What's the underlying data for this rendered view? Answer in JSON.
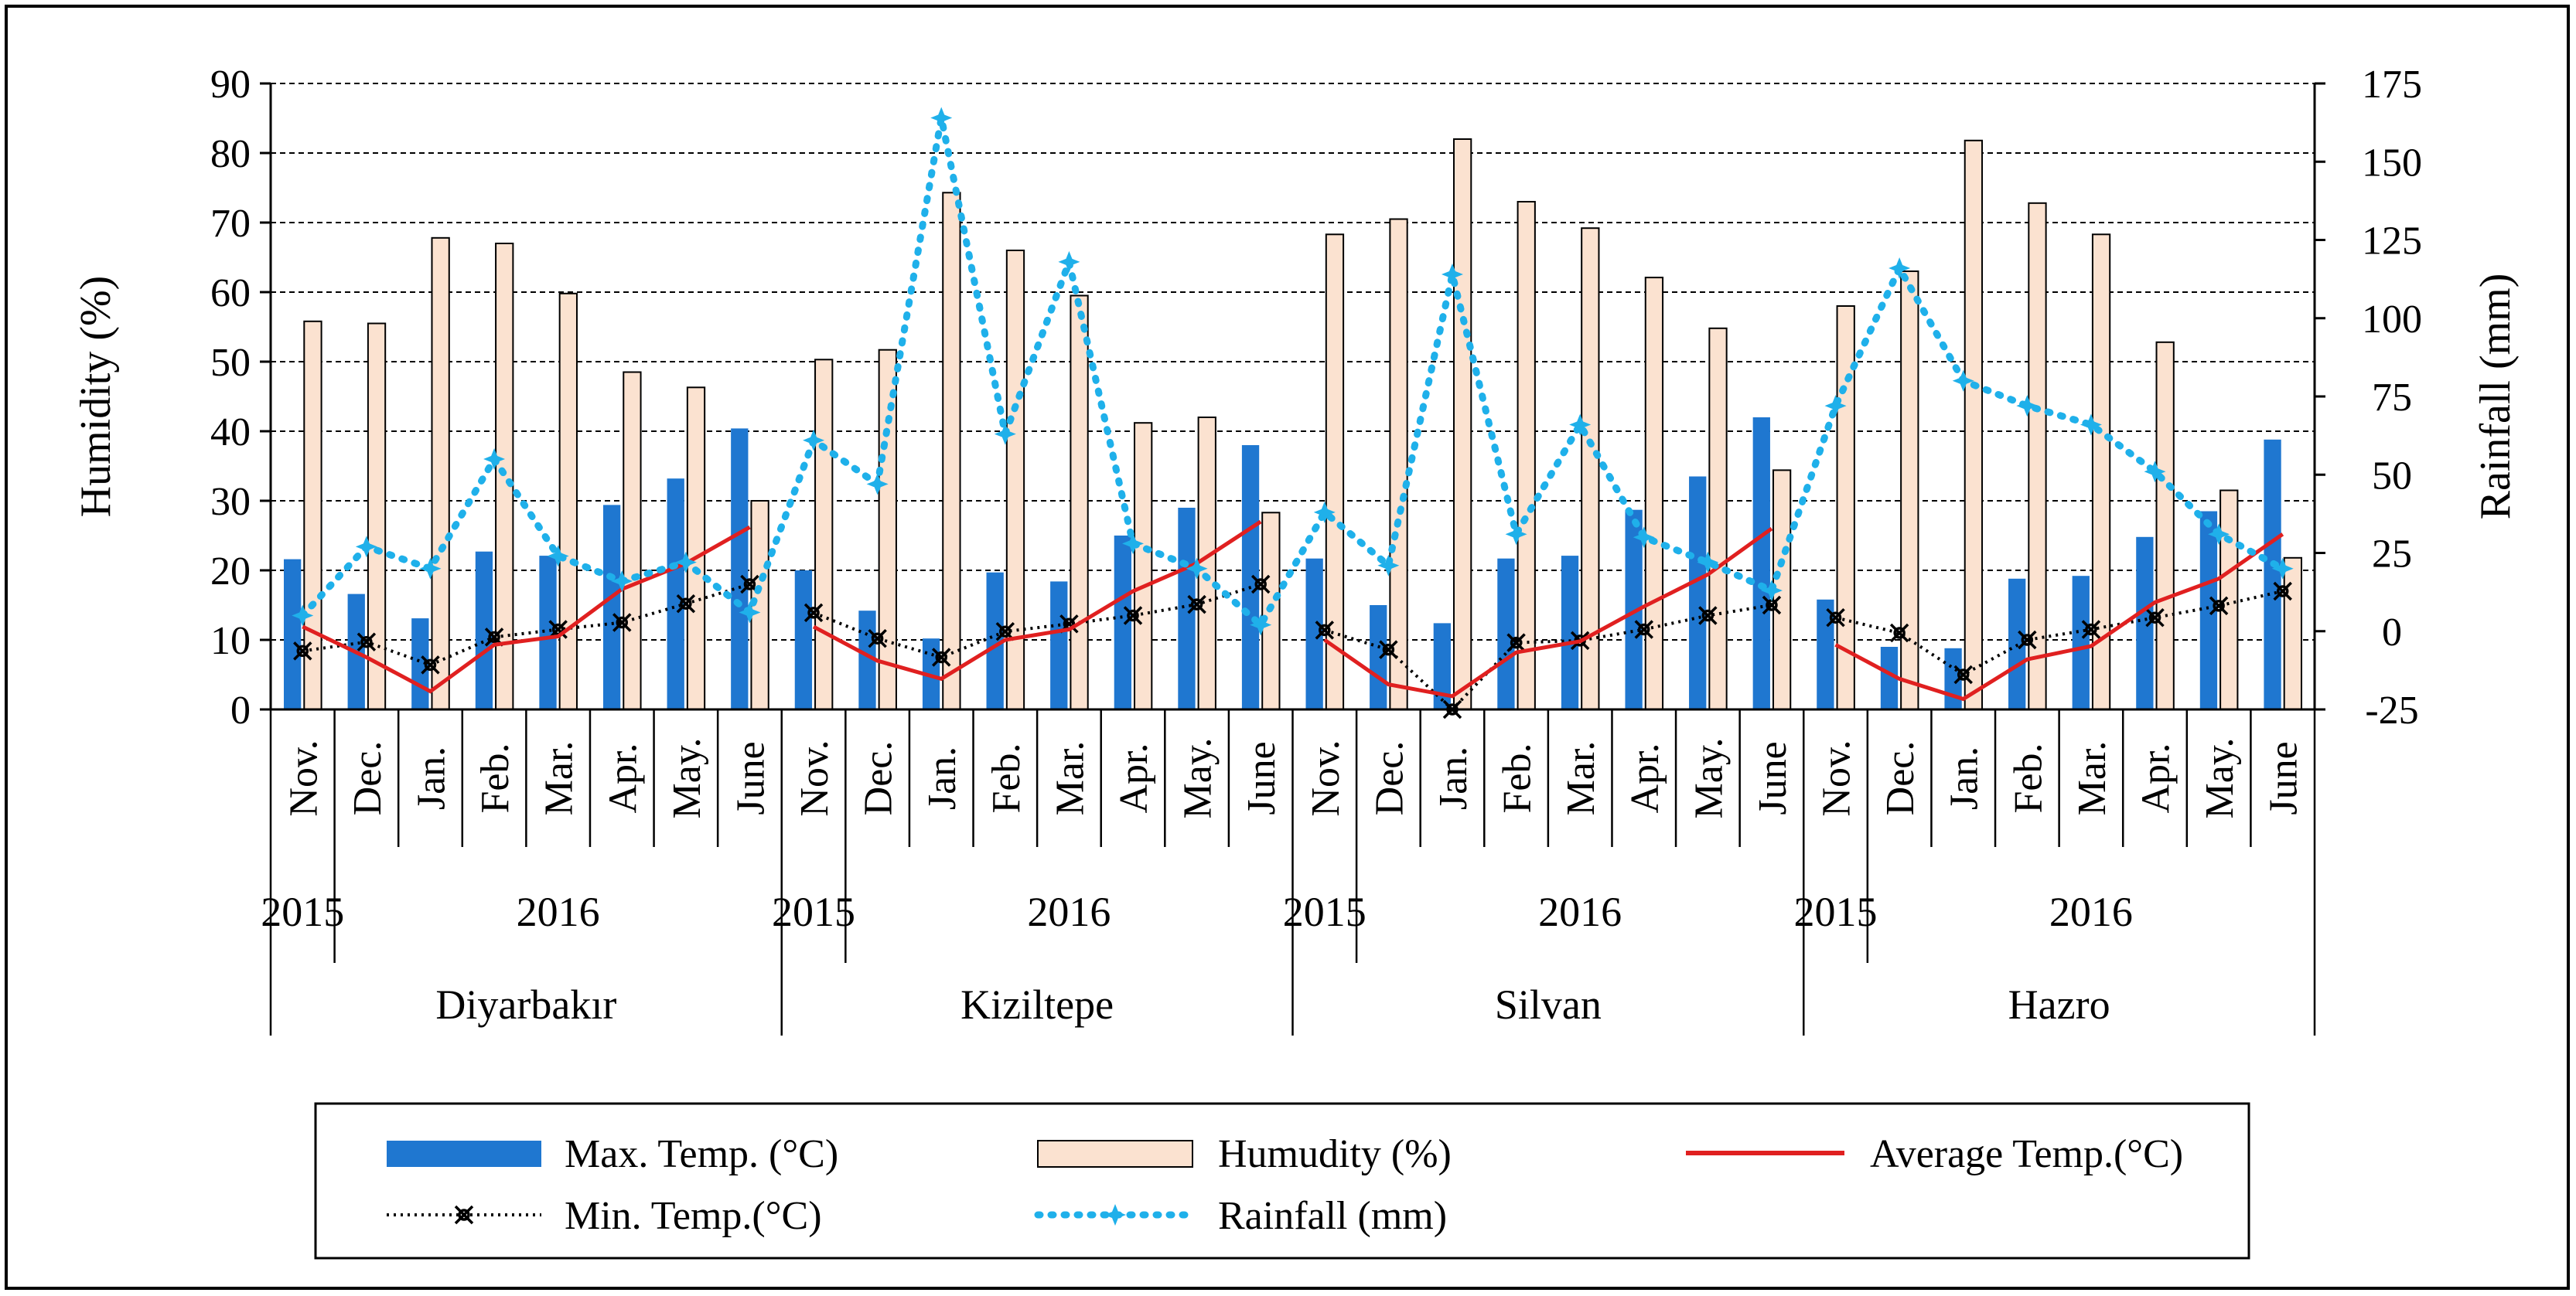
{
  "chart_data": {
    "type": "bar",
    "y_left": {
      "label": "Humidity (%)",
      "ylim": [
        0,
        90
      ],
      "ticks": [
        0,
        10,
        20,
        30,
        40,
        50,
        60,
        70,
        80,
        90
      ]
    },
    "y_right": {
      "label": "Rainfall (mm)",
      "ylim": [
        -25,
        175
      ],
      "ticks": [
        -25,
        0,
        25,
        50,
        75,
        100,
        125,
        150,
        175
      ]
    },
    "gridlines": true,
    "legend_position": "bottom",
    "month_labels": [
      "Nov.",
      "Dec.",
      "Jan.",
      "Feb.",
      "Mar.",
      "Apr.",
      "May.",
      "June"
    ],
    "year_labels": [
      "2015",
      "2016"
    ],
    "stations": [
      {
        "name": "Diyarbakır",
        "max_temp": [
          21.6,
          16.6,
          13.1,
          22.7,
          22.1,
          29.4,
          33.2,
          40.4
        ],
        "humidity": [
          55.8,
          55.5,
          67.8,
          67.0,
          59.8,
          48.5,
          46.3,
          30.0
        ],
        "avg_temp": [
          11.9,
          7.5,
          2.6,
          9.3,
          10.5,
          17.3,
          21.0,
          26.2
        ],
        "min_temp": [
          8.4,
          9.7,
          6.4,
          10.4,
          11.5,
          12.5,
          15.2,
          18.0
        ],
        "rainfall": [
          5,
          27,
          20,
          55,
          24,
          16,
          22,
          6
        ]
      },
      {
        "name": "Kiziltepe",
        "max_temp": [
          20.0,
          14.2,
          10.2,
          19.7,
          18.4,
          25.0,
          29.0,
          38.0
        ],
        "humidity": [
          50.3,
          51.7,
          74.3,
          66.0,
          59.5,
          41.2,
          42.0,
          28.3
        ],
        "avg_temp": [
          11.9,
          7.0,
          4.4,
          10.0,
          11.5,
          17.0,
          21.0,
          27.0
        ],
        "min_temp": [
          13.9,
          10.2,
          7.5,
          11.2,
          12.3,
          13.5,
          15.1,
          18.0
        ],
        "rainfall": [
          61,
          47,
          164,
          63,
          118,
          28,
          20,
          2
        ]
      },
      {
        "name": "Silvan",
        "max_temp": [
          21.7,
          15.0,
          12.4,
          21.7,
          22.1,
          28.7,
          33.5,
          42.0
        ],
        "humidity": [
          68.3,
          70.5,
          82.0,
          73.0,
          69.2,
          62.1,
          54.8,
          34.4
        ],
        "avg_temp": [
          10.0,
          3.6,
          1.9,
          8.2,
          9.8,
          14.8,
          19.4,
          26.0
        ],
        "min_temp": [
          11.4,
          8.6,
          0.0,
          9.6,
          9.9,
          11.5,
          13.5,
          15.0
        ],
        "rainfall": [
          38,
          21,
          114,
          31,
          66,
          30,
          22,
          13
        ]
      },
      {
        "name": "Hazro",
        "max_temp": [
          15.8,
          9.0,
          8.8,
          18.8,
          19.2,
          24.8,
          28.5,
          38.8
        ],
        "humidity": [
          58.0,
          63.0,
          81.8,
          72.8,
          68.3,
          52.8,
          31.5,
          21.8
        ],
        "avg_temp": [
          9.3,
          4.4,
          1.5,
          7.2,
          9.1,
          15.4,
          18.8,
          25.2
        ],
        "min_temp": [
          13.2,
          11.0,
          5.0,
          10.0,
          11.5,
          13.2,
          14.9,
          17.0
        ],
        "rainfall": [
          72,
          116,
          80,
          72,
          66,
          51,
          31,
          20
        ]
      }
    ],
    "legend": {
      "max_temp": "Max. Temp. (°C)",
      "humidity": "Humudity (%)",
      "avg_temp": "Average Temp.(°C)",
      "min_temp": "Min. Temp.(°C)",
      "rainfall": "Rainfall (mm)"
    },
    "colors": {
      "max_temp": "#1f77d0",
      "humidity": "#fbe2d0",
      "avg_temp": "#e02020",
      "min_temp": "#000000",
      "rainfall": "#1fb0ea",
      "grid": "#000000"
    }
  }
}
